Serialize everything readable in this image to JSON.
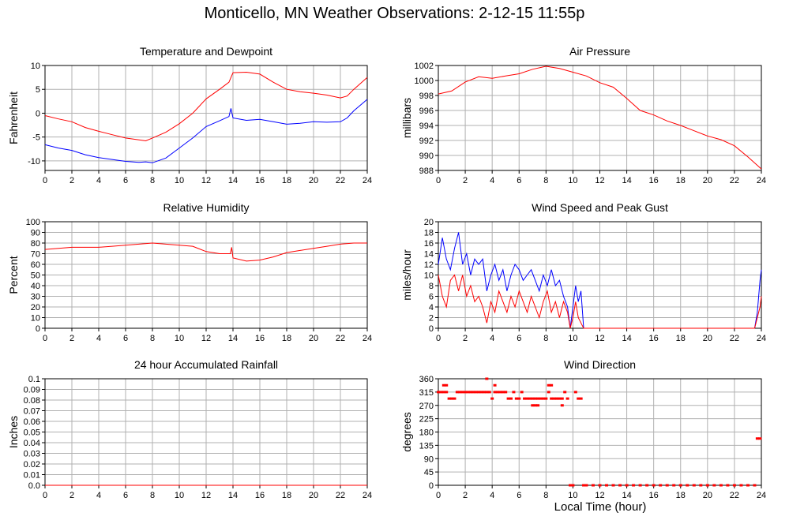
{
  "title": "Monticello, MN Weather Observations: 2-12-15 11:55p",
  "shared_xlabel": "Local Time (hour)",
  "colors": {
    "red": "#ff0000",
    "blue": "#0000ff",
    "grid": "#b0b0b0"
  },
  "chart_data": [
    {
      "id": "temp",
      "type": "line",
      "title": "Temperature and Dewpoint",
      "ylabel": "Fahrenheit",
      "xlim": [
        0,
        24
      ],
      "ylim": [
        -12,
        10
      ],
      "xticks": [
        0,
        2,
        4,
        6,
        8,
        10,
        12,
        14,
        16,
        18,
        20,
        22,
        24
      ],
      "yticks": [
        -10,
        -5,
        0,
        5,
        10
      ],
      "ytick_labels": [
        "-10",
        "-5",
        "0",
        "5",
        "10"
      ],
      "grid": true,
      "series": [
        {
          "color": "#ff0000",
          "x": [
            0,
            1,
            2,
            3,
            4,
            5,
            6,
            7,
            7.5,
            8,
            9,
            10,
            11,
            12,
            13,
            13.7,
            14,
            15,
            16,
            17,
            18,
            19,
            20,
            21,
            22,
            22.5,
            23,
            24
          ],
          "y": [
            -0.5,
            -1.2,
            -1.8,
            -3,
            -3.8,
            -4.5,
            -5.2,
            -5.6,
            -5.8,
            -5.2,
            -4,
            -2.2,
            0,
            3,
            5,
            6.5,
            8.5,
            8.6,
            8.2,
            6.5,
            5,
            4.5,
            4.2,
            3.8,
            3.2,
            3.6,
            5,
            7.5
          ]
        },
        {
          "color": "#0000ff",
          "x": [
            0,
            1,
            2,
            3,
            4,
            5,
            6,
            7,
            7.5,
            8,
            9,
            10,
            11,
            12,
            13,
            13.7,
            13.85,
            14,
            15,
            16,
            17,
            18,
            19,
            20,
            21,
            22,
            22.5,
            23,
            24
          ],
          "y": [
            -6.6,
            -7.3,
            -7.8,
            -8.7,
            -9.3,
            -9.7,
            -10.1,
            -10.3,
            -10.2,
            -10.4,
            -9.4,
            -7.3,
            -5.2,
            -2.8,
            -1.6,
            -0.7,
            1,
            -1,
            -1.5,
            -1.3,
            -1.8,
            -2.3,
            -2.1,
            -1.8,
            -1.9,
            -1.8,
            -1,
            0.5,
            2.9
          ]
        }
      ]
    },
    {
      "id": "pressure",
      "type": "line",
      "title": "Air Pressure",
      "ylabel": "millibars",
      "xlim": [
        0,
        24
      ],
      "ylim": [
        988,
        1002
      ],
      "xticks": [
        0,
        2,
        4,
        6,
        8,
        10,
        12,
        14,
        16,
        18,
        20,
        22,
        24
      ],
      "yticks": [
        988,
        990,
        992,
        994,
        996,
        998,
        1000,
        1002
      ],
      "ytick_labels": [
        "988",
        "990",
        "992",
        "994",
        "996",
        "998",
        "1000",
        "1002"
      ],
      "grid": true,
      "series": [
        {
          "color": "#ff0000",
          "x": [
            0,
            1,
            2,
            3,
            4,
            5,
            6,
            7,
            8,
            9,
            10,
            11,
            12,
            13,
            14,
            15,
            16,
            17,
            18,
            19,
            20,
            21,
            22,
            23,
            24
          ],
          "y": [
            998.2,
            998.6,
            999.8,
            1000.5,
            1000.3,
            1000.6,
            1000.9,
            1001.5,
            1001.9,
            1001.6,
            1001.1,
            1000.6,
            999.7,
            999.1,
            997.6,
            996,
            995.4,
            994.6,
            994,
            993.3,
            992.6,
            992.1,
            991.3,
            989.8,
            988.2
          ]
        }
      ]
    },
    {
      "id": "humidity",
      "type": "line",
      "title": "Relative Humidity",
      "ylabel": "Percent",
      "xlim": [
        0,
        24
      ],
      "ylim": [
        0,
        100
      ],
      "xticks": [
        0,
        2,
        4,
        6,
        8,
        10,
        12,
        14,
        16,
        18,
        20,
        22,
        24
      ],
      "yticks": [
        0,
        10,
        20,
        30,
        40,
        50,
        60,
        70,
        80,
        90,
        100
      ],
      "ytick_labels": [
        "0",
        "10",
        "20",
        "30",
        "40",
        "50",
        "60",
        "70",
        "80",
        "90",
        "100"
      ],
      "grid": true,
      "series": [
        {
          "color": "#ff0000",
          "x": [
            0,
            1,
            2,
            3,
            4,
            5,
            6,
            7,
            8,
            9,
            10,
            11,
            12,
            13,
            13.8,
            13.9,
            14,
            15,
            16,
            17,
            18,
            19,
            20,
            21,
            22,
            23,
            24
          ],
          "y": [
            74,
            75,
            76,
            76,
            76,
            77,
            78,
            79,
            80,
            79,
            78,
            77,
            72,
            70,
            70,
            76,
            66,
            63,
            64,
            67,
            71,
            73,
            75,
            77,
            79,
            80,
            80
          ]
        }
      ]
    },
    {
      "id": "wind",
      "type": "line",
      "title": "Wind Speed and Peak Gust",
      "ylabel": "miles/hour",
      "xlim": [
        0,
        24
      ],
      "ylim": [
        0,
        20
      ],
      "xticks": [
        0,
        2,
        4,
        6,
        8,
        10,
        12,
        14,
        16,
        18,
        20,
        22,
        24
      ],
      "yticks": [
        0,
        2,
        4,
        6,
        8,
        10,
        12,
        14,
        16,
        18,
        20
      ],
      "ytick_labels": [
        "0",
        "2",
        "4",
        "6",
        "8",
        "10",
        "12",
        "14",
        "16",
        "18",
        "20"
      ],
      "grid": true,
      "series": [
        {
          "color": "#0000ff",
          "x": [
            0,
            0.3,
            0.6,
            0.9,
            1.2,
            1.5,
            1.8,
            2.1,
            2.4,
            2.7,
            3,
            3.3,
            3.6,
            3.9,
            4.2,
            4.5,
            4.8,
            5.1,
            5.4,
            5.7,
            6,
            6.3,
            6.6,
            6.9,
            7.2,
            7.5,
            7.8,
            8.1,
            8.4,
            8.7,
            9,
            9.3,
            9.6,
            9.8,
            10,
            10.2,
            10.4,
            10.6,
            10.8,
            11,
            12,
            14,
            16,
            18,
            20,
            22,
            23.5,
            23.7,
            23.9,
            24
          ],
          "y": [
            12,
            17,
            13,
            11,
            15,
            18,
            12,
            14,
            10,
            13,
            12,
            13,
            7,
            10,
            12,
            9,
            11,
            7,
            10,
            12,
            11,
            9,
            10,
            11,
            9,
            7,
            10,
            8,
            11,
            8,
            9,
            6,
            4,
            0,
            4,
            8,
            5,
            7,
            0,
            0,
            0,
            0,
            0,
            0,
            0,
            0,
            0,
            3,
            9,
            11
          ]
        },
        {
          "color": "#ff0000",
          "x": [
            0,
            0.3,
            0.6,
            0.9,
            1.2,
            1.5,
            1.8,
            2.1,
            2.4,
            2.7,
            3,
            3.3,
            3.6,
            3.9,
            4.2,
            4.5,
            4.8,
            5.1,
            5.4,
            5.7,
            6,
            6.3,
            6.6,
            6.9,
            7.2,
            7.5,
            7.8,
            8.1,
            8.4,
            8.7,
            9,
            9.3,
            9.6,
            9.8,
            10,
            10.2,
            10.4,
            10.6,
            10.8,
            11,
            12,
            14,
            16,
            18,
            20,
            22,
            23.5,
            23.7,
            23.9,
            24
          ],
          "y": [
            10,
            6,
            4,
            9,
            10,
            7,
            10,
            6,
            8,
            5,
            6,
            4,
            1,
            5,
            3,
            7,
            5,
            3,
            6,
            4,
            7,
            5,
            3,
            6,
            4,
            2,
            5,
            7,
            3,
            5,
            2,
            5,
            3,
            0,
            2,
            5,
            2,
            1,
            0,
            0,
            0,
            0,
            0,
            0,
            0,
            0,
            0,
            2,
            4,
            6
          ]
        }
      ]
    },
    {
      "id": "rain",
      "type": "line",
      "title": "24 hour Accumulated Rainfall",
      "ylabel": "Inches",
      "xlim": [
        0,
        24
      ],
      "ylim": [
        0,
        0.1
      ],
      "xticks": [
        0,
        2,
        4,
        6,
        8,
        10,
        12,
        14,
        16,
        18,
        20,
        22,
        24
      ],
      "yticks": [
        0,
        0.01,
        0.02,
        0.03,
        0.04,
        0.05,
        0.06,
        0.07,
        0.08,
        0.09,
        0.1
      ],
      "ytick_labels": [
        "0.0",
        "0.01",
        "0.02",
        "0.03",
        "0.04",
        "0.05",
        "0.06",
        "0.07",
        "0.08",
        "0.09",
        "0.1"
      ],
      "grid": true,
      "series": [
        {
          "color": "#ff0000",
          "x": [
            0,
            24
          ],
          "y": [
            0,
            0
          ]
        }
      ]
    },
    {
      "id": "direction",
      "type": "scatter",
      "title": "Wind Direction",
      "ylabel": "degrees",
      "xlim": [
        0,
        24
      ],
      "ylim": [
        0,
        360
      ],
      "xticks": [
        0,
        2,
        4,
        6,
        8,
        10,
        12,
        14,
        16,
        18,
        20,
        22,
        24
      ],
      "yticks": [
        0,
        45,
        90,
        135,
        180,
        225,
        270,
        315,
        360
      ],
      "ytick_labels": [
        "0",
        "45",
        "90",
        "135",
        "180",
        "225",
        "270",
        "315",
        "360"
      ],
      "grid": true,
      "series": [
        {
          "color": "#ff0000",
          "x": [
            0,
            0.2,
            0.4,
            0.6,
            0.8,
            1.0,
            1.2,
            1.4,
            1.6,
            1.8,
            2.0,
            2.2,
            2.4,
            2.6,
            2.8,
            3.0,
            3.2,
            3.4,
            3.6,
            3.8,
            4.0,
            4.2,
            4.4,
            4.6,
            4.8,
            5.0,
            5.2,
            5.4,
            5.6,
            5.8,
            6.0,
            6.2,
            6.4,
            6.6,
            6.8,
            7.0,
            7.2,
            7.4,
            7.6,
            7.8,
            8.0,
            8.2,
            8.4,
            8.6,
            8.8,
            9.0,
            9.2,
            9.4,
            9.6,
            9.8,
            10.0,
            10.2,
            10.4,
            10.6,
            10.8,
            11.0,
            11.5,
            12,
            12.5,
            13,
            13.5,
            14,
            14.5,
            15,
            15.5,
            16,
            16.5,
            17,
            17.5,
            18,
            18.5,
            19,
            19.5,
            20,
            20.5,
            21,
            21.5,
            22,
            22.5,
            23,
            23.5,
            23.7,
            23.9,
            0.4,
            0.6,
            3.6,
            4.2,
            7.0,
            7.2,
            7.4,
            8.2,
            8.4,
            9.2
          ],
          "y": [
            315,
            315,
            315,
            315,
            293,
            293,
            293,
            315,
            315,
            315,
            315,
            315,
            315,
            315,
            315,
            315,
            315,
            315,
            315,
            315,
            293,
            315,
            315,
            315,
            315,
            315,
            293,
            293,
            315,
            293,
            293,
            315,
            293,
            293,
            293,
            293,
            293,
            293,
            293,
            293,
            293,
            315,
            293,
            293,
            293,
            293,
            293,
            315,
            293,
            0,
            0,
            315,
            293,
            293,
            0,
            0,
            0,
            0,
            0,
            0,
            0,
            0,
            0,
            0,
            0,
            0,
            0,
            0,
            0,
            0,
            0,
            0,
            0,
            0,
            0,
            0,
            0,
            0,
            0,
            0,
            0,
            158,
            158,
            338,
            338,
            360,
            338,
            270,
            270,
            270,
            338,
            338,
            270
          ]
        }
      ]
    }
  ]
}
